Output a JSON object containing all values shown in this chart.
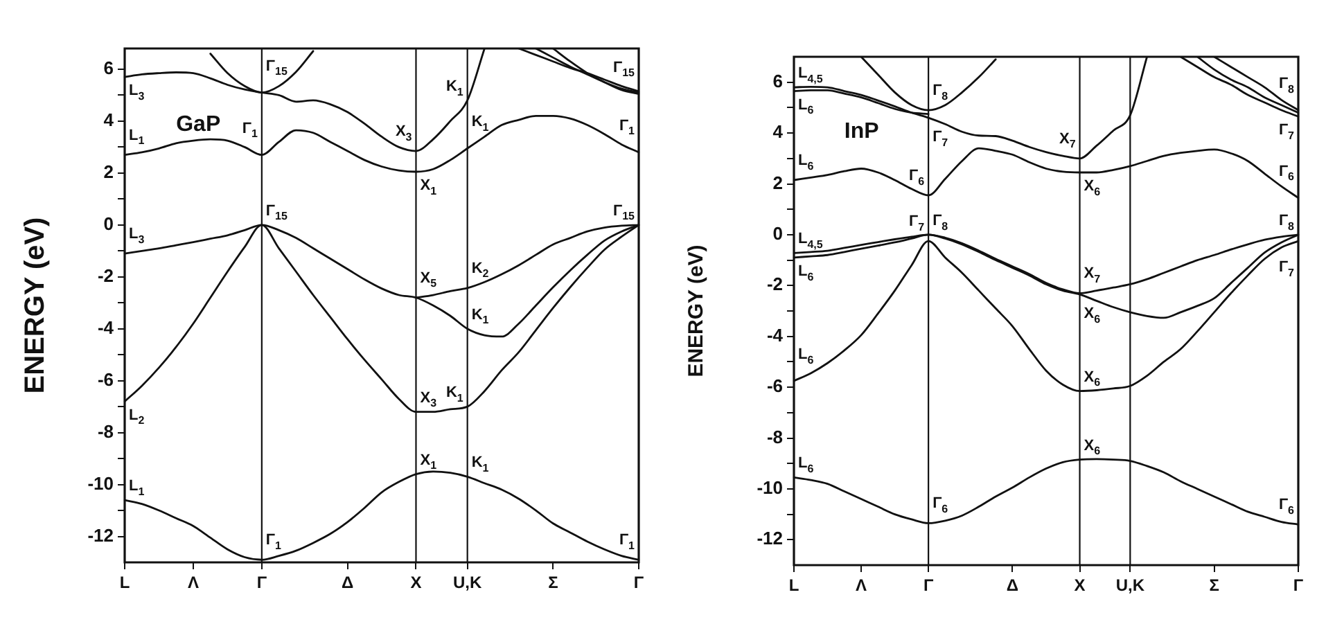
{
  "chart_data": [
    {
      "type": "line",
      "title": "GaP",
      "ylabel": "ENERGY (eV)",
      "color": "#111111",
      "marker": "none",
      "legend": false,
      "grid": false,
      "categories": [
        "L",
        null,
        null,
        null,
        "Λ",
        null,
        null,
        null,
        "Γ",
        null,
        null,
        null,
        null,
        "Δ",
        null,
        null,
        null,
        "X",
        null,
        null,
        "U,K",
        null,
        null,
        null,
        null,
        "Σ",
        null,
        null,
        null,
        null,
        "Γ"
      ],
      "ylim": [
        -13,
        6.8
      ],
      "yticks": [
        -12,
        {
          "value": -11,
          "label": null
        },
        -10,
        {
          "value": -9,
          "label": null
        },
        -8,
        {
          "value": -7,
          "label": null
        },
        -6,
        {
          "value": -5,
          "label": null
        },
        -4,
        {
          "value": -3,
          "label": null
        },
        -2,
        {
          "value": -1,
          "label": null
        },
        0,
        {
          "value": 1,
          "label": null
        },
        2,
        {
          "value": 3,
          "label": null
        },
        4,
        {
          "value": 5,
          "label": null
        },
        6
      ],
      "series": [
        {
          "values": [
            -10.6,
            -10.75,
            -11.0,
            -11.3,
            -11.6,
            -12.05,
            -12.5,
            -12.8,
            -12.9,
            -12.75,
            -12.55,
            -12.25,
            -11.9,
            -11.45,
            -10.9,
            -10.3,
            -9.9,
            -9.6,
            -9.5,
            -9.55,
            -9.7,
            -9.95,
            -10.2,
            -10.55,
            -11.0,
            -11.5,
            -11.85,
            -12.2,
            -12.5,
            -12.75,
            -12.9
          ]
        },
        {
          "values": [
            -6.8,
            -6.2,
            -5.5,
            -4.7,
            -3.8,
            -2.8,
            -1.8,
            -0.85,
            0,
            -0.9,
            -1.8,
            -2.7,
            -3.55,
            -4.4,
            -5.2,
            -5.95,
            -6.7,
            -7.2,
            -7.2,
            -7.1,
            -7.0,
            -6.4,
            -5.6,
            -4.9,
            -4.05,
            -3.2,
            -2.4,
            -1.65,
            -0.95,
            -0.45,
            0
          ]
        },
        {
          "values": [
            -1.1,
            -1.0,
            -0.9,
            -0.78,
            -0.66,
            -0.53,
            -0.4,
            -0.2,
            0,
            -0.2,
            -0.5,
            -0.9,
            -1.3,
            -1.7,
            -2.1,
            -2.45,
            -2.7,
            -2.8,
            -3.1,
            -3.5,
            -4.0,
            -4.25,
            -4.3,
            -3.8,
            -3.1,
            -2.4,
            -1.75,
            -1.15,
            -0.6,
            -0.25,
            0
          ]
        },
        {
          "values": [
            null,
            null,
            null,
            null,
            null,
            null,
            null,
            null,
            null,
            null,
            null,
            null,
            null,
            null,
            null,
            null,
            null,
            -2.8,
            -2.7,
            -2.55,
            -2.43,
            -2.2,
            -1.9,
            -1.55,
            -1.15,
            -0.75,
            -0.5,
            -0.25,
            -0.1,
            -0.03,
            0
          ]
        },
        {
          "values": [
            2.7,
            2.8,
            2.95,
            3.15,
            3.25,
            3.3,
            3.25,
            3.0,
            2.7,
            3.2,
            3.65,
            3.55,
            3.2,
            2.85,
            2.5,
            2.25,
            2.1,
            2.05,
            2.15,
            2.5,
            2.95,
            3.4,
            3.85,
            4.05,
            4.2,
            4.2,
            4.1,
            3.85,
            3.5,
            3.1,
            2.8
          ]
        },
        {
          "values": [
            5.7,
            5.8,
            5.85,
            5.88,
            5.85,
            5.65,
            5.4,
            5.22,
            5.1,
            5.0,
            4.75,
            4.8,
            4.65,
            4.35,
            3.9,
            3.4,
            3.0,
            2.85,
            3.3,
            4.0,
            4.8,
            6.8,
            null,
            null,
            null,
            null,
            null,
            null,
            null,
            null,
            null
          ]
        },
        {
          "values": [
            null,
            null,
            null,
            null,
            null,
            6.6,
            5.85,
            5.35,
            5.1,
            5.35,
            5.9,
            6.7,
            null,
            null,
            null,
            null,
            null,
            null,
            null,
            null,
            null,
            null,
            null,
            null,
            null,
            null,
            null,
            null,
            null,
            null,
            null
          ]
        },
        {
          "values": [
            null,
            null,
            null,
            null,
            null,
            null,
            null,
            null,
            null,
            null,
            null,
            null,
            null,
            null,
            null,
            null,
            null,
            null,
            null,
            null,
            null,
            null,
            null,
            6.8,
            6.55,
            6.3,
            6.05,
            5.85,
            5.6,
            5.35,
            5.15
          ]
        },
        {
          "values": [
            null,
            null,
            null,
            null,
            null,
            null,
            null,
            null,
            null,
            null,
            null,
            null,
            null,
            null,
            null,
            null,
            null,
            null,
            null,
            null,
            null,
            null,
            null,
            null,
            6.8,
            6.45,
            6.1,
            5.8,
            5.5,
            5.25,
            5.1
          ]
        },
        {
          "values": [
            null,
            null,
            null,
            null,
            null,
            null,
            null,
            null,
            null,
            null,
            null,
            null,
            null,
            null,
            null,
            null,
            null,
            null,
            null,
            null,
            null,
            null,
            null,
            null,
            null,
            6.8,
            6.3,
            5.85,
            5.5,
            5.2,
            5.05
          ]
        }
      ],
      "ref_lines": [
        {
          "axis": "x",
          "value": "Γ"
        },
        {
          "axis": "x",
          "value": "X"
        },
        {
          "axis": "x",
          "value": "U,K"
        }
      ],
      "annotations": [
        {
          "text": "L$_{3}$",
          "x": "L",
          "y": 5.7
        },
        {
          "text": "Γ$_{15}$",
          "x": "Γ",
          "y": 5.1
        },
        {
          "text": "K$_{1}$",
          "x": "U,K",
          "y": 4.8
        },
        {
          "text": "Γ$_{15}$",
          "y": 5.05
        },
        {
          "text": "X$_{3}$",
          "x": "X",
          "y": 2.85
        },
        {
          "text": "L$_{1}$",
          "x": "L",
          "y": 2.7
        },
        {
          "text": "Γ$_{1}$",
          "x": "Γ",
          "y": 2.7
        },
        {
          "text": "X$_{1}$",
          "x": "X",
          "y": 2.05
        },
        {
          "text": "K$_{1}$",
          "x": "U,K",
          "y": 2.95
        },
        {
          "text": "Γ$_{1}$",
          "y": 2.8
        },
        {
          "text": "Γ$_{15}$",
          "x": "Γ",
          "y": 0
        },
        {
          "text": "Γ$_{15}$",
          "y": 0
        },
        {
          "text": "L$_{3}$",
          "x": "L",
          "y": -1.1
        },
        {
          "text": "K$_{2}$",
          "x": "U,K",
          "y": -2.43
        },
        {
          "text": "X$_{5}$",
          "x": "X",
          "y": -2.8
        },
        {
          "text": "K$_{1}$",
          "x": "U,K",
          "y": -4.0
        },
        {
          "text": "L$_{2}$",
          "x": "L",
          "y": -6.8
        },
        {
          "text": "K$_{1}$",
          "x": "U,K",
          "y": -7.0
        },
        {
          "text": "X$_{3}$",
          "x": "X",
          "y": -7.2
        },
        {
          "text": "X$_{1}$",
          "x": "X",
          "y": -9.6
        },
        {
          "text": "K$_{1}$",
          "x": "U,K",
          "y": -9.7
        },
        {
          "text": "L$_{1}$",
          "x": "L",
          "y": -10.6
        },
        {
          "text": "Γ$_{1}$",
          "x": "Γ",
          "y": -12.9
        },
        {
          "text": "Γ$_{1}$",
          "y": -12.9
        }
      ]
    },
    {
      "type": "line",
      "title": "InP",
      "ylabel": "ENERGY (eV)",
      "color": "#111111",
      "marker": "none",
      "legend": false,
      "grid": false,
      "categories": [
        "L",
        null,
        null,
        null,
        "Λ",
        null,
        null,
        null,
        "Γ",
        null,
        null,
        null,
        null,
        "Δ",
        null,
        null,
        null,
        "X",
        null,
        null,
        "U,K",
        null,
        null,
        null,
        null,
        "Σ",
        null,
        null,
        null,
        null,
        "Γ"
      ],
      "ylim": [
        -13,
        7
      ],
      "yticks": [
        -12,
        {
          "value": -11,
          "label": null
        },
        -10,
        {
          "value": -9,
          "label": null
        },
        -8,
        {
          "value": -7,
          "label": null
        },
        -6,
        {
          "value": -5,
          "label": null
        },
        -4,
        {
          "value": -3,
          "label": null
        },
        -2,
        {
          "value": -1,
          "label": null
        },
        0,
        {
          "value": 1,
          "label": null
        },
        2,
        {
          "value": 3,
          "label": null
        },
        4,
        {
          "value": 5,
          "label": null
        },
        6
      ],
      "series": [
        {
          "values": [
            -9.55,
            -9.65,
            -9.8,
            -10.1,
            -10.4,
            -10.7,
            -11.0,
            -11.2,
            -11.35,
            -11.25,
            -11.05,
            -10.7,
            -10.3,
            -9.95,
            -9.55,
            -9.2,
            -8.95,
            -8.85,
            -8.83,
            -8.85,
            -8.9,
            -9.1,
            -9.35,
            -9.7,
            -10.0,
            -10.3,
            -10.6,
            -10.9,
            -11.1,
            -11.3,
            -11.4
          ]
        },
        {
          "values": [
            -5.75,
            -5.45,
            -5.05,
            -4.55,
            -3.95,
            -3.1,
            -2.2,
            -1.2,
            -0.25,
            -0.9,
            -1.5,
            -2.2,
            -2.9,
            -3.6,
            -4.5,
            -5.35,
            -5.9,
            -6.15,
            -6.12,
            -6.05,
            -5.95,
            -5.55,
            -5.0,
            -4.5,
            -3.8,
            -3.05,
            -2.3,
            -1.6,
            -0.95,
            -0.5,
            -0.25
          ]
        },
        {
          "values": [
            -0.9,
            -0.85,
            -0.8,
            -0.68,
            -0.55,
            -0.43,
            -0.3,
            -0.15,
            0,
            -0.15,
            -0.38,
            -0.68,
            -1.0,
            -1.3,
            -1.6,
            -1.95,
            -2.2,
            -2.35,
            -2.6,
            -2.85,
            -3.05,
            -3.2,
            -3.27,
            -3.05,
            -2.8,
            -2.5,
            -1.9,
            -1.3,
            -0.7,
            -0.3,
            0
          ]
        },
        {
          "values": [
            -0.72,
            -0.68,
            -0.63,
            -0.52,
            -0.4,
            -0.29,
            -0.18,
            -0.08,
            0,
            -0.12,
            -0.34,
            -0.63,
            -0.95,
            -1.25,
            -1.55,
            -1.9,
            -2.15,
            -2.3,
            -2.2,
            -2.08,
            -1.95,
            -1.75,
            -1.5,
            -1.25,
            -1.0,
            -0.8,
            -0.58,
            -0.38,
            -0.2,
            -0.08,
            0
          ]
        },
        {
          "values": [
            2.15,
            2.25,
            2.35,
            2.5,
            2.6,
            2.45,
            2.15,
            1.8,
            1.55,
            2.2,
            2.9,
            3.4,
            3.3,
            3.15,
            2.85,
            2.6,
            2.48,
            2.45,
            2.45,
            2.55,
            2.7,
            2.9,
            3.1,
            3.22,
            3.3,
            3.35,
            3.2,
            2.9,
            2.4,
            1.9,
            1.45
          ]
        },
        {
          "values": [
            5.8,
            5.82,
            5.8,
            5.65,
            5.5,
            5.28,
            5.05,
            4.8,
            4.6,
            4.35,
            4.05,
            3.9,
            3.88,
            3.7,
            3.45,
            3.25,
            3.1,
            3.0,
            3.5,
            4.1,
            4.7,
            7,
            null,
            null,
            null,
            null,
            null,
            null,
            null,
            null,
            null
          ]
        },
        {
          "values": [
            5.65,
            5.68,
            5.68,
            5.55,
            5.4,
            5.18,
            4.95,
            4.8,
            4.75,
            null,
            null,
            null,
            null,
            null,
            null,
            null,
            null,
            null,
            null,
            null,
            null,
            null,
            null,
            null,
            null,
            null,
            null,
            null,
            null,
            null,
            null
          ]
        },
        {
          "values": [
            null,
            null,
            null,
            null,
            7,
            6.3,
            5.6,
            5.1,
            4.9,
            5.1,
            5.6,
            6.2,
            6.9,
            null,
            null,
            null,
            null,
            null,
            null,
            null,
            null,
            null,
            null,
            null,
            null,
            null,
            null,
            null,
            null,
            null,
            null
          ]
        },
        {
          "values": [
            null,
            null,
            null,
            null,
            null,
            null,
            null,
            null,
            null,
            null,
            null,
            null,
            null,
            null,
            null,
            null,
            null,
            null,
            null,
            null,
            null,
            null,
            null,
            7,
            6.6,
            6.2,
            5.9,
            5.5,
            5.2,
            4.9,
            4.65
          ]
        },
        {
          "values": [
            null,
            null,
            null,
            null,
            null,
            null,
            null,
            null,
            null,
            null,
            null,
            null,
            null,
            null,
            null,
            null,
            null,
            null,
            null,
            null,
            null,
            null,
            null,
            null,
            null,
            7,
            6.6,
            6.2,
            5.8,
            5.3,
            4.9
          ]
        },
        {
          "values": [
            null,
            null,
            null,
            null,
            null,
            null,
            null,
            null,
            null,
            null,
            null,
            null,
            null,
            null,
            null,
            null,
            null,
            null,
            null,
            null,
            null,
            null,
            null,
            null,
            7,
            6.5,
            6.1,
            5.8,
            5.4,
            5.1,
            4.8
          ]
        }
      ],
      "ref_lines": [
        {
          "axis": "x",
          "value": "Γ"
        },
        {
          "axis": "x",
          "value": "X"
        },
        {
          "axis": "x",
          "value": "U,K"
        }
      ],
      "annotations": [
        {
          "text": "L$_{4,5}$",
          "x": "L",
          "y": 5.8
        },
        {
          "text": "L$_{6}$",
          "x": "L",
          "y": 5.65
        },
        {
          "text": "Γ$_{8}$",
          "x": "Γ",
          "y": 4.9
        },
        {
          "text": "Γ$_{7}$",
          "x": "Γ",
          "y": 4.6
        },
        {
          "text": "X$_{7}$",
          "x": "X",
          "y": 3.0
        },
        {
          "text": "Γ$_{8}$",
          "y": 4.9
        },
        {
          "text": "Γ$_{7}$",
          "y": 4.65
        },
        {
          "text": "L$_{6}$",
          "x": "L",
          "y": 2.15
        },
        {
          "text": "Γ$_{6}$",
          "x": "Γ",
          "y": 1.55
        },
        {
          "text": "X$_{6}$",
          "x": "X",
          "y": 2.45
        },
        {
          "text": "Γ$_{6}$",
          "y": 1.45
        },
        {
          "text": "Γ$_{8}$",
          "x": "Γ",
          "y": 0
        },
        {
          "text": "Γ$_{7}$",
          "x": "Γ",
          "y": -0.25
        },
        {
          "text": "Γ$_{8}$",
          "y": 0
        },
        {
          "text": "Γ$_{7}$",
          "y": -0.25
        },
        {
          "text": "L$_{4,5}$",
          "x": "L",
          "y": -0.72
        },
        {
          "text": "L$_{6}$",
          "x": "L",
          "y": -0.9
        },
        {
          "text": "X$_{7}$",
          "x": "X",
          "y": -2.3
        },
        {
          "text": "X$_{6}$",
          "x": "X",
          "y": -2.35
        },
        {
          "text": "L$_{6}$",
          "x": "L",
          "y": -5.75
        },
        {
          "text": "X$_{6}$",
          "x": "X",
          "y": -6.15
        },
        {
          "text": "X$_{6}$",
          "x": "X",
          "y": -8.85
        },
        {
          "text": "L$_{6}$",
          "x": "L",
          "y": -9.55
        },
        {
          "text": "Γ$_{6}$",
          "x": "Γ",
          "y": -11.35
        },
        {
          "text": "Γ$_{6}$",
          "y": -11.4
        }
      ]
    }
  ]
}
